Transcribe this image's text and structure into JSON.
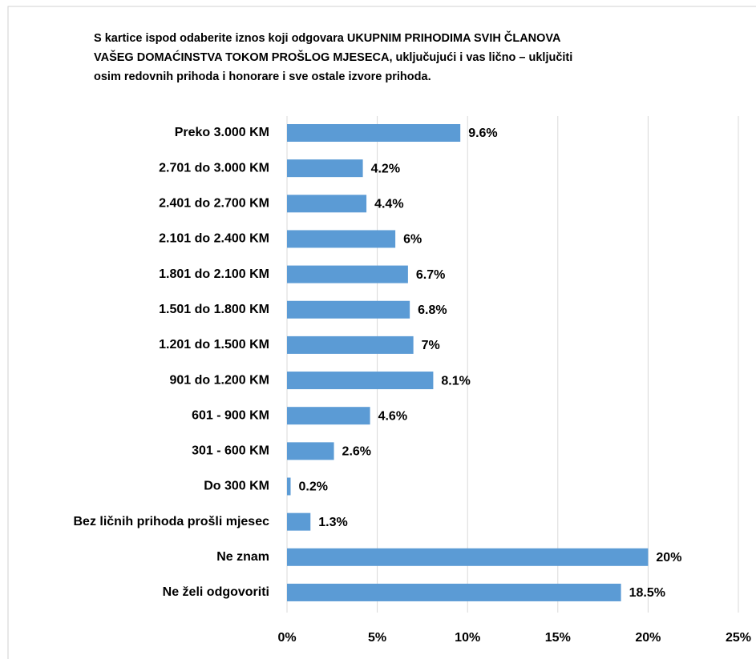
{
  "chart_data": {
    "type": "hbar",
    "title": [
      "S kartice ispod odaberite iznos koji odgovara UKUPNIM PRIHODIMA SVIH ČLANOVA",
      "VAŠEG DOMAĆINSTVA TOKOM PROŠLOG MJESECA, uključujući i vas lično – uključiti",
      "osim redovnih prihoda i honorare i sve ostale izvore prihoda."
    ],
    "categories": [
      "Preko 3.000 KM",
      "2.701 do 3.000 KM",
      "2.401 do 2.700 KM",
      "2.101 do 2.400 KM",
      "1.801 do 2.100 KM",
      "1.501 do 1.800 KM",
      "1.201 do 1.500 KM",
      "901 do 1.200 KM",
      "601 - 900 KM",
      "301 - 600 KM",
      "Do 300 KM",
      "Bez ličnih prihoda prošli mjesec",
      "Ne znam",
      "Ne želi odgovoriti"
    ],
    "values": [
      9.6,
      4.2,
      4.4,
      6,
      6.7,
      6.8,
      7,
      8.1,
      4.6,
      2.6,
      0.2,
      1.3,
      20,
      18.5
    ],
    "value_labels": [
      "9.6%",
      "4.2%",
      "4.4%",
      "6%",
      "6.7%",
      "6.8%",
      "7%",
      "8.1%",
      "4.6%",
      "2.6%",
      "0.2%",
      "1.3%",
      "20%",
      "18.5%"
    ],
    "color": "#5b9bd5",
    "xlim": [
      0,
      25
    ],
    "xticks": [
      {
        "value": 0,
        "label": "0%"
      },
      {
        "value": 5,
        "label": "5%"
      },
      {
        "value": 10,
        "label": "10%"
      },
      {
        "value": 15,
        "label": "15%"
      },
      {
        "value": 20,
        "label": "20%"
      },
      {
        "value": 25,
        "label": "25%"
      }
    ],
    "grid": true
  }
}
